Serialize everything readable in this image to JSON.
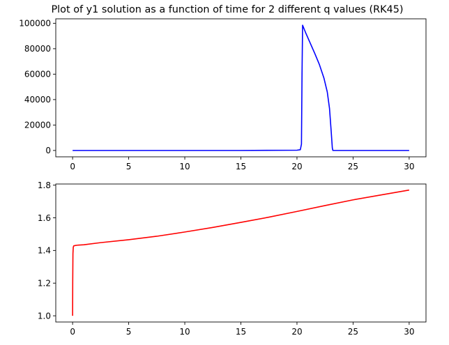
{
  "figure": {
    "title": "Plot of y1 solution as a function of time for 2 different q values (RK45)"
  },
  "chart_data": [
    {
      "type": "line",
      "title": "Plot of y1 solution as a function of time for 2 different q values (RK45)",
      "xlabel": "",
      "ylabel": "",
      "xlim": [
        -1.5,
        31.5
      ],
      "ylim": [
        -5000,
        103500
      ],
      "xticks": [
        0,
        5,
        10,
        15,
        20,
        25,
        30
      ],
      "xtick_labels": [
        "0",
        "5",
        "10",
        "15",
        "20",
        "25",
        "30"
      ],
      "yticks": [
        0,
        20000,
        40000,
        60000,
        80000,
        100000
      ],
      "ytick_labels": [
        "0",
        "20000",
        "40000",
        "60000",
        "80000",
        "100000"
      ],
      "grid": false,
      "series": [
        {
          "color": "#0000ff",
          "x": [
            0,
            5,
            10,
            15,
            20,
            20.3,
            20.4,
            20.45,
            20.5,
            20.8,
            21.2,
            21.6,
            22.0,
            22.4,
            22.7,
            22.9,
            23.05,
            23.15,
            23.2,
            23.3,
            25,
            30
          ],
          "y": [
            0,
            0,
            0,
            0,
            200,
            600,
            5000,
            60000,
            98500,
            92000,
            84000,
            76000,
            67500,
            57000,
            46000,
            33000,
            15000,
            2000,
            0,
            0,
            0,
            0
          ]
        }
      ]
    },
    {
      "type": "line",
      "title": "",
      "xlabel": "",
      "ylabel": "",
      "xlim": [
        -1.5,
        31.5
      ],
      "ylim": [
        0.962,
        1.807
      ],
      "xticks": [
        0,
        5,
        10,
        15,
        20,
        25,
        30
      ],
      "xtick_labels": [
        "0",
        "5",
        "10",
        "15",
        "20",
        "25",
        "30"
      ],
      "yticks": [
        1.0,
        1.2,
        1.4,
        1.6,
        1.8
      ],
      "ytick_labels": [
        "1.0",
        "1.2",
        "1.4",
        "1.6",
        "1.8"
      ],
      "grid": false,
      "series": [
        {
          "color": "#ff0000",
          "x": [
            0,
            0.01,
            0.03,
            0.06,
            0.1,
            0.2,
            0.5,
            1,
            2.5,
            5,
            7.5,
            10,
            12.5,
            15,
            17.5,
            20,
            22.5,
            25,
            27.5,
            30
          ],
          "y": [
            1.0,
            1.2,
            1.38,
            1.42,
            1.428,
            1.43,
            1.433,
            1.435,
            1.448,
            1.466,
            1.487,
            1.513,
            1.541,
            1.572,
            1.604,
            1.639,
            1.675,
            1.71,
            1.74,
            1.77
          ]
        }
      ]
    }
  ]
}
